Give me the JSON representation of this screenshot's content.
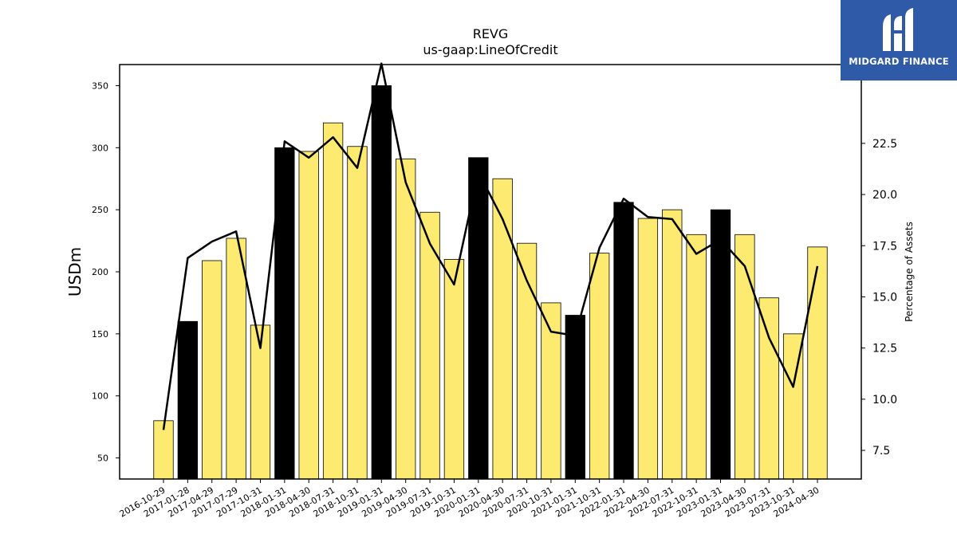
{
  "chart_data": {
    "type": "bar",
    "title": "REVG",
    "subtitle": "us-gaap:LineOfCredit",
    "ylabel": "USDm",
    "y2label": "Percentage of Assets",
    "ylim": [
      33,
      367
    ],
    "y2lim": [
      6.1,
      26.35
    ],
    "yticks": [
      50,
      100,
      150,
      200,
      250,
      300,
      350
    ],
    "y2ticks": [
      "7.5",
      "10.0",
      "12.5",
      "15.0",
      "17.5",
      "20.0",
      "22.5"
    ],
    "grid": false,
    "categories": [
      "2016-10-29",
      "2017-01-28",
      "2017-04-29",
      "2017-07-29",
      "2017-10-31",
      "2018-01-31",
      "2018-04-30",
      "2018-07-31",
      "2018-10-31",
      "2019-01-31",
      "2019-04-30",
      "2019-07-31",
      "2019-10-31",
      "2020-01-31",
      "2020-04-30",
      "2020-07-31",
      "2020-10-31",
      "2021-01-31",
      "2021-10-31",
      "2022-01-31",
      "2022-04-30",
      "2022-07-31",
      "2022-10-31",
      "2023-01-31",
      "2023-04-30",
      "2023-07-31",
      "2023-10-31",
      "2024-04-30"
    ],
    "series": [
      {
        "kind": "bar",
        "values": [
          80,
          160,
          209,
          227,
          157,
          300,
          297,
          320,
          301,
          350,
          291,
          248,
          210,
          292,
          275,
          223,
          175,
          165,
          215,
          256,
          243,
          250,
          230,
          250,
          230,
          179,
          150,
          220
        ],
        "colors": [
          "#fdea70",
          "#000000",
          "#fdea70",
          "#fdea70",
          "#fdea70",
          "#000000",
          "#fdea70",
          "#fdea70",
          "#fdea70",
          "#000000",
          "#fdea70",
          "#fdea70",
          "#fdea70",
          "#000000",
          "#fdea70",
          "#fdea70",
          "#fdea70",
          "#000000",
          "#fdea70",
          "#000000",
          "#fdea70",
          "#fdea70",
          "#fdea70",
          "#000000",
          "#fdea70",
          "#fdea70",
          "#fdea70",
          "#fdea70"
        ]
      },
      {
        "kind": "line",
        "axis": "right",
        "values": [
          8.5,
          16.9,
          17.7,
          18.2,
          12.5,
          22.6,
          21.8,
          22.8,
          21.3,
          26.4,
          20.6,
          17.6,
          15.6,
          21.1,
          18.8,
          15.8,
          13.3,
          13.1,
          17.4,
          19.8,
          18.9,
          18.8,
          17.1,
          17.8,
          16.5,
          13.0,
          10.6,
          16.5
        ]
      }
    ]
  },
  "logo": {
    "text": "MIDGARD FINANCE",
    "bg_color": "#2f5aa8"
  }
}
